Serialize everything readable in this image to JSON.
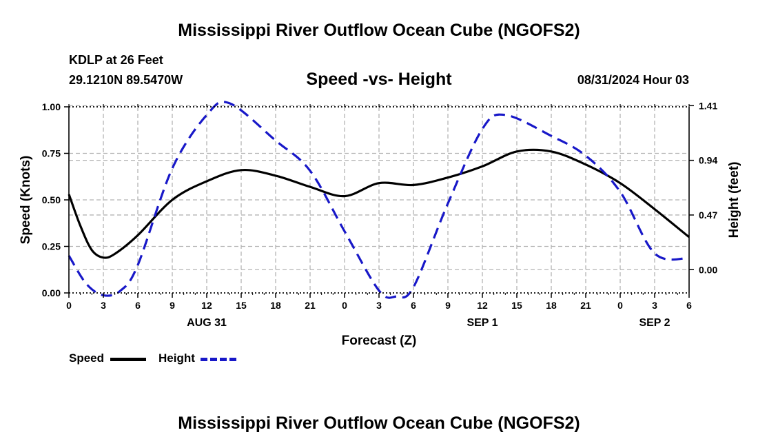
{
  "title": "Mississippi River Outflow Ocean Cube (NGOFS2)",
  "station": "KDLP at 26 Feet",
  "coords": "29.1210N  89.5470W",
  "subtitle": "Speed -vs- Height",
  "datetime": "08/31/2024 Hour 03",
  "legend": {
    "speed": "Speed",
    "height": "Height"
  },
  "colors": {
    "speed": "#000000",
    "height": "#1818c8",
    "grid": "#b4b4b4"
  },
  "chart_data": {
    "type": "line",
    "title": "Speed -vs- Height",
    "xlabel": "Forecast (Z)",
    "ylabel": "Speed (Knots)",
    "y2label": "Height (feet)",
    "x_unit": "forecast hour (from Aug 31 00Z)",
    "xlim": [
      0,
      54
    ],
    "ylim": [
      0,
      1.0
    ],
    "y2lim": [
      -0.2,
      1.4
    ],
    "xticks": [
      0,
      3,
      6,
      9,
      12,
      15,
      18,
      21,
      24,
      27,
      30,
      33,
      36,
      39,
      42,
      45,
      48,
      51,
      54
    ],
    "xtick_labels": [
      "0",
      "3",
      "6",
      "9",
      "12",
      "15",
      "18",
      "21",
      "0",
      "3",
      "6",
      "9",
      "12",
      "15",
      "18",
      "21",
      "0",
      "3",
      "6"
    ],
    "date_labels": [
      {
        "x": 12,
        "label": "AUG 31"
      },
      {
        "x": 36,
        "label": "SEP 1"
      },
      {
        "x": 51,
        "label": "SEP 2"
      }
    ],
    "yticks": [
      0,
      0.25,
      0.5,
      0.75,
      1.0
    ],
    "ytick_labels": [
      "0.00",
      "0.25",
      "0.50",
      "0.75",
      "1.00"
    ],
    "y2ticks": [
      0.0,
      0.47,
      0.94,
      1.41
    ],
    "y2tick_labels": [
      "0.00",
      "0.47",
      "0.94",
      "1.41"
    ],
    "grid": true,
    "legend_position": "bottom-left",
    "series": [
      {
        "name": "Speed",
        "axis": "left",
        "style": "solid",
        "x": [
          0,
          1,
          2,
          3,
          4,
          6,
          9,
          12,
          15,
          18,
          21,
          24,
          27,
          30,
          33,
          36,
          39,
          42,
          45,
          48,
          51,
          54
        ],
        "y": [
          0.53,
          0.36,
          0.23,
          0.19,
          0.21,
          0.31,
          0.5,
          0.6,
          0.66,
          0.63,
          0.57,
          0.52,
          0.59,
          0.58,
          0.62,
          0.68,
          0.76,
          0.76,
          0.69,
          0.59,
          0.45,
          0.3
        ]
      },
      {
        "name": "Height",
        "axis": "right",
        "style": "dashed",
        "x": [
          0,
          1.5,
          3,
          4.5,
          6,
          9,
          12,
          14,
          18,
          21,
          24,
          27,
          28.5,
          30,
          33,
          36,
          38,
          42,
          45,
          48,
          51,
          54
        ],
        "y": [
          0.12,
          -0.12,
          -0.22,
          -0.18,
          0.04,
          0.87,
          1.33,
          1.43,
          1.11,
          0.85,
          0.33,
          -0.18,
          -0.23,
          -0.15,
          0.57,
          1.21,
          1.33,
          1.15,
          0.98,
          0.67,
          0.14,
          0.1
        ]
      }
    ]
  }
}
